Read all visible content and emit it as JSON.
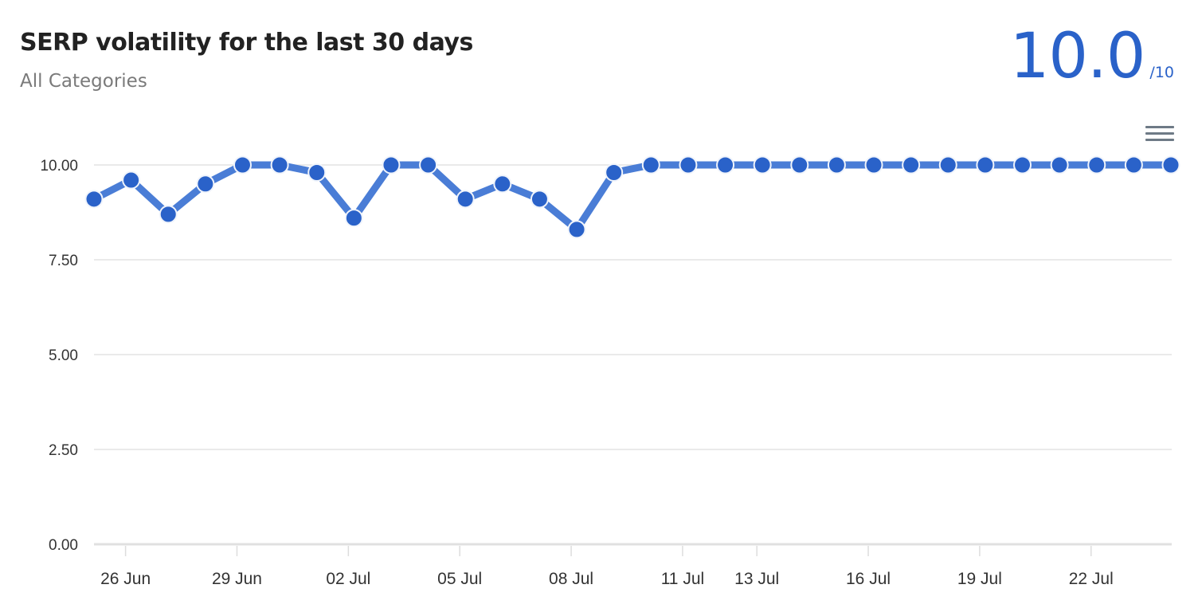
{
  "header": {
    "title": "SERP volatility for the last 30 days",
    "subtitle": "All Categories"
  },
  "score": {
    "value": "10.0",
    "max": "/10",
    "color": "#2a62c9"
  },
  "menu": {
    "icon": "hamburger-menu-icon"
  },
  "chart_data": {
    "type": "line",
    "title": "SERP volatility for the last 30 days",
    "subtitle": "All Categories",
    "xlabel": "",
    "ylabel": "",
    "ylim": [
      0,
      10
    ],
    "yticks": [
      "0.00",
      "2.50",
      "5.00",
      "7.50",
      "10.00"
    ],
    "xticks": [
      "26 Jun",
      "29 Jun",
      "02 Jul",
      "05 Jul",
      "08 Jul",
      "11 Jul",
      "13 Jul",
      "16 Jul",
      "19 Jul",
      "22 Jul"
    ],
    "grid": true,
    "legend": false,
    "series_color": "#2a62c9",
    "x": [
      "25 Jun",
      "26 Jun",
      "27 Jun",
      "28 Jun",
      "29 Jun",
      "30 Jun",
      "01 Jul",
      "02 Jul",
      "03 Jul",
      "04 Jul",
      "05 Jul",
      "06 Jul",
      "07 Jul",
      "08 Jul",
      "09 Jul",
      "10 Jul",
      "11 Jul",
      "12 Jul",
      "13 Jul",
      "14 Jul",
      "15 Jul",
      "16 Jul",
      "17 Jul",
      "18 Jul",
      "19 Jul",
      "20 Jul",
      "21 Jul",
      "22 Jul",
      "23 Jul",
      "24 Jul"
    ],
    "series": [
      {
        "name": "SERP volatility",
        "values": [
          9.1,
          9.6,
          8.7,
          9.5,
          10.0,
          10.0,
          9.8,
          8.6,
          10.0,
          10.0,
          9.1,
          9.5,
          9.1,
          8.3,
          9.8,
          10.0,
          10.0,
          10.0,
          10.0,
          10.0,
          10.0,
          10.0,
          10.0,
          10.0,
          10.0,
          10.0,
          10.0,
          10.0,
          10.0,
          10.0
        ]
      }
    ]
  }
}
